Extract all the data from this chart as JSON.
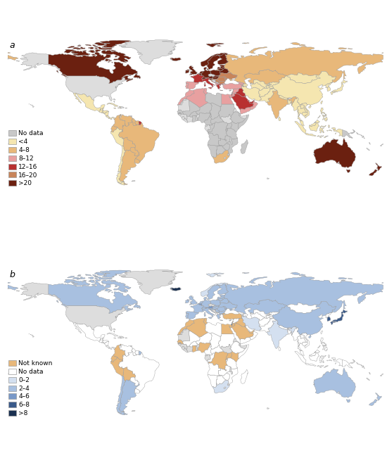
{
  "panel_a": {
    "title": "a",
    "legend_labels": [
      "No data",
      "<4",
      "4–8",
      "8–12",
      "12–16",
      "16–20",
      ">20"
    ],
    "legend_colors": [
      "#c8c8c8",
      "#f5e6b0",
      "#e8b87a",
      "#e8a0a0",
      "#b83030",
      "#c8845a",
      "#6b2010"
    ]
  },
  "panel_b": {
    "title": "b",
    "legend_labels": [
      "Not known",
      "No data",
      "0–2",
      "2–4",
      "4–6",
      "6–8",
      ">8"
    ],
    "legend_colors": [
      "#e8b87a",
      "#ffffff",
      "#d4e0f0",
      "#a8c0e0",
      "#7898c8",
      "#3a5a8a",
      "#1a3050"
    ]
  },
  "background_color": "#ffffff",
  "edge_color": "#999999",
  "edge_width": 0.3,
  "label_fontsize": 9,
  "legend_fontsize": 7
}
